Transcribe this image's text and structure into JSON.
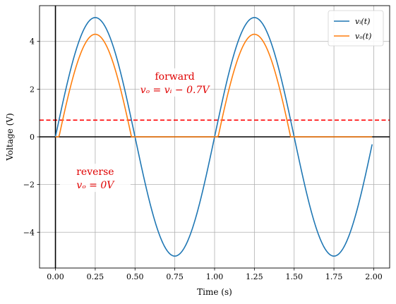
{
  "chart_data": {
    "type": "line",
    "xlabel": "Time (s)",
    "ylabel": "Voltage (V)",
    "xlim": [
      -0.1,
      2.1
    ],
    "ylim": [
      -5.5,
      5.5
    ],
    "x_ticks": [
      0.0,
      0.25,
      0.5,
      0.75,
      1.0,
      1.25,
      1.5,
      1.75,
      2.0
    ],
    "x_tick_labels": [
      "0.00",
      "0.25",
      "0.50",
      "0.75",
      "1.00",
      "1.25",
      "1.50",
      "1.75",
      "2.00"
    ],
    "y_ticks": [
      -4,
      -2,
      0,
      2,
      4
    ],
    "y_tick_labels": [
      "−4",
      "−2",
      "0",
      "2",
      "4"
    ],
    "grid": true,
    "legend_position": "top-right",
    "series": [
      {
        "name": "vᵢ(t)",
        "color": "#1f77b4",
        "function": "5*sin(2*pi*t)",
        "x_range": [
          0.0,
          1.99
        ],
        "amplitude": 5,
        "frequency_hz": 1
      },
      {
        "name": "vₒ(t)",
        "color": "#ff7f0e",
        "function": "max(5*sin(2*pi*t) - 0.7, 0)",
        "x_range": [
          0.0,
          1.99
        ],
        "diode_drop": 0.7
      }
    ],
    "reference_lines": [
      {
        "orientation": "horizontal",
        "y": 0.7,
        "style": "dashed",
        "color": "#ff0000"
      },
      {
        "orientation": "horizontal",
        "y": 0,
        "style": "solid",
        "color": "#000000"
      },
      {
        "orientation": "vertical",
        "x": 0,
        "style": "solid",
        "color": "#000000"
      }
    ],
    "annotations": [
      {
        "name": "forward",
        "title": "forward",
        "equation": "vₒ = vᵢ − 0.7V",
        "x": 0.75,
        "y": 2.4,
        "color": "#e00000"
      },
      {
        "name": "reverse",
        "title": "reverse",
        "equation": "vₒ = 0V",
        "x": 0.25,
        "y": -1.6,
        "color": "#e00000"
      }
    ]
  }
}
